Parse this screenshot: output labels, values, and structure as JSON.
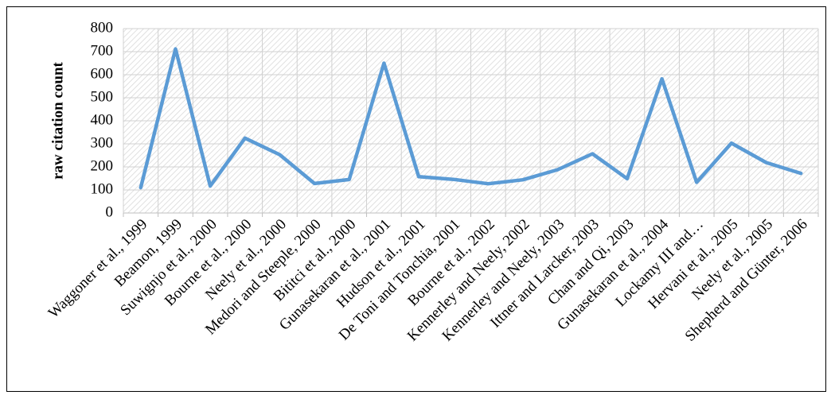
{
  "chart_data": {
    "type": "line",
    "title": "",
    "xlabel": "",
    "ylabel": "raw citation count",
    "ylim": [
      0,
      800
    ],
    "yticks": [
      0,
      100,
      200,
      300,
      400,
      500,
      600,
      700,
      800
    ],
    "grid": true,
    "legend": "none",
    "line_color": "#5b9bd5",
    "categories": [
      "Waggoner et al., 1999",
      "Beamon, 1999",
      "Suwignjo et al., 2000",
      "Bourne et al., 2000",
      "Neely et al., 2000",
      "Medori and  Steeple, 2000",
      "Bititci et al., 2000",
      "Gunasekaran et al., 2001",
      "Hudson et al., 2001",
      "De Toni and Tonchia, 2001",
      "Bourne et al., 2002",
      "Kennerley and Neely, 2002",
      "Kennerley and Neely, 2003",
      "Ittner and Larcker, 2003",
      "Chan and Qi, 2003",
      "Gunasekaran et al., 2004",
      "Lockamy III and…",
      "Hervani et al., 2005",
      "Neely et al., 2005",
      "Shepherd and Günter, 2006"
    ],
    "values": [
      110,
      712,
      117,
      325,
      253,
      128,
      145,
      650,
      158,
      146,
      127,
      144,
      188,
      257,
      149,
      582,
      133,
      303,
      219,
      172
    ]
  }
}
